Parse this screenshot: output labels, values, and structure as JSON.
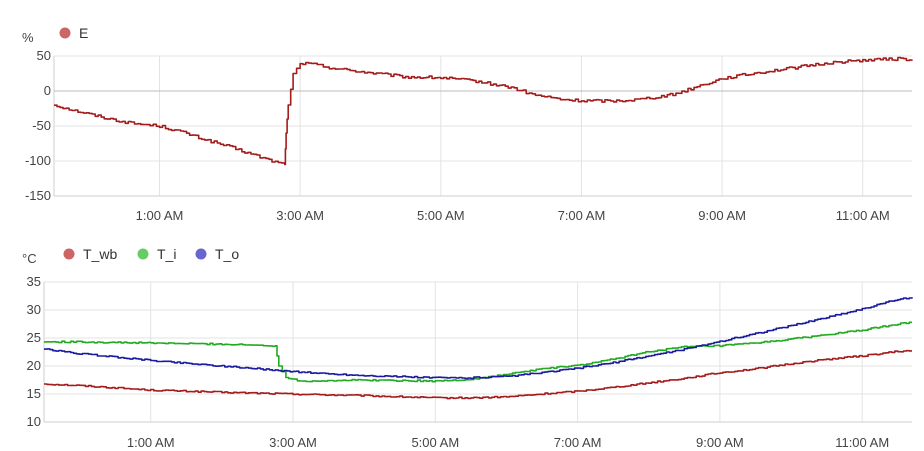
{
  "colors": {
    "E": "#a31b1b",
    "T_wb": "#a31b1b",
    "T_i": "#22aa22",
    "T_o": "#1a1aa0",
    "legend_E": "#cc6666",
    "legend_T_wb": "#cc6666",
    "legend_T_i": "#66cc66",
    "legend_T_o": "#6666cc"
  },
  "chart_data": [
    {
      "type": "line",
      "title": "",
      "ylabel": "%",
      "ylim": [
        -150,
        50
      ],
      "yticks": [
        50,
        0,
        -50,
        -100,
        -150
      ],
      "xlim": [
        -0.5,
        11.7
      ],
      "xticks": [
        1,
        3,
        5,
        7,
        9,
        11
      ],
      "xtick_labels": [
        "1:00 AM",
        "3:00 AM",
        "5:00 AM",
        "7:00 AM",
        "9:00 AM",
        "11:00 AM"
      ],
      "grid": true,
      "legend_position": "top-left",
      "series": [
        {
          "name": "E",
          "x": [
            -0.5,
            -0.2,
            0.0,
            0.3,
            0.6,
            1.0,
            1.3,
            1.6,
            2.0,
            2.3,
            2.6,
            2.78,
            2.8,
            2.83,
            2.9,
            3.0,
            3.2,
            3.5,
            4.0,
            4.5,
            5.0,
            5.5,
            6.0,
            6.3,
            6.7,
            7.0,
            7.5,
            7.8,
            8.1,
            8.3,
            8.6,
            9.0,
            9.5,
            10.0,
            10.5,
            11.0,
            11.5,
            11.7
          ],
          "y": [
            -20,
            -28,
            -33,
            -40,
            -46,
            -50,
            -58,
            -68,
            -80,
            -90,
            -100,
            -105,
            -60,
            -20,
            25,
            40,
            38,
            32,
            26,
            20,
            19,
            14,
            5,
            -5,
            -12,
            -14,
            -14,
            -12,
            -8,
            -5,
            5,
            18,
            26,
            33,
            40,
            44,
            46,
            45
          ]
        }
      ]
    },
    {
      "type": "line",
      "title": "",
      "ylabel": "°C",
      "ylim": [
        10,
        35
      ],
      "yticks": [
        35,
        30,
        25,
        20,
        15,
        10
      ],
      "xlim": [
        -0.5,
        11.7
      ],
      "xticks": [
        1,
        3,
        5,
        7,
        9,
        11
      ],
      "xtick_labels": [
        "1:00 AM",
        "3:00 AM",
        "5:00 AM",
        "7:00 AM",
        "9:00 AM",
        "11:00 AM"
      ],
      "grid": true,
      "legend_position": "top-left",
      "series": [
        {
          "name": "T_wb",
          "x": [
            -0.5,
            0.0,
            1.0,
            2.0,
            3.0,
            4.0,
            5.0,
            5.5,
            6.0,
            6.5,
            7.0,
            7.5,
            8.0,
            8.5,
            9.0,
            9.5,
            10.0,
            10.5,
            11.0,
            11.5,
            11.7
          ],
          "y": [
            16.8,
            16.5,
            15.7,
            15.3,
            15.0,
            14.7,
            14.3,
            14.3,
            14.5,
            15.0,
            15.5,
            16.2,
            17.0,
            17.8,
            18.8,
            19.5,
            20.4,
            21.2,
            21.8,
            22.6,
            22.7
          ]
        },
        {
          "name": "T_i",
          "x": [
            -0.5,
            0.0,
            1.0,
            2.0,
            2.75,
            2.8,
            2.9,
            3.1,
            4.0,
            5.0,
            5.5,
            6.0,
            6.5,
            7.0,
            7.5,
            8.0,
            8.5,
            9.0,
            9.5,
            10.0,
            10.5,
            11.0,
            11.5,
            11.7
          ],
          "y": [
            24.3,
            24.3,
            24.1,
            23.9,
            23.6,
            20.0,
            18.0,
            17.3,
            17.5,
            17.3,
            17.6,
            18.5,
            19.5,
            20.1,
            21.2,
            22.6,
            23.4,
            23.6,
            24.1,
            24.8,
            25.6,
            26.4,
            27.5,
            27.8
          ]
        },
        {
          "name": "T_o",
          "x": [
            -0.5,
            0.0,
            0.5,
            1.0,
            1.5,
            2.0,
            2.5,
            3.0,
            3.5,
            4.0,
            4.5,
            5.0,
            5.5,
            6.0,
            6.5,
            7.0,
            7.5,
            8.0,
            8.5,
            9.0,
            9.5,
            10.0,
            10.5,
            11.0,
            11.5,
            11.7
          ],
          "y": [
            23.0,
            22.2,
            21.6,
            21.0,
            20.5,
            20.0,
            19.5,
            19.0,
            18.6,
            18.3,
            18.1,
            17.9,
            17.9,
            18.1,
            18.8,
            19.6,
            20.6,
            21.8,
            23.0,
            24.4,
            25.8,
            27.2,
            28.7,
            30.2,
            31.9,
            32.3
          ]
        }
      ]
    }
  ]
}
